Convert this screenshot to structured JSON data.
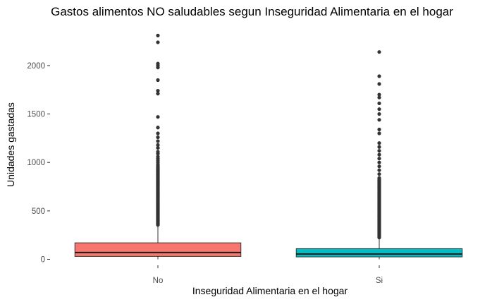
{
  "chart_data": {
    "type": "boxplot",
    "title": "Gastos alimentos NO saludables segun Inseguridad Alimentaria en el hogar",
    "xlabel": "Inseguridad Alimentaria en el hogar",
    "ylabel": "Unidades gastadas",
    "categories": [
      "No",
      "Si"
    ],
    "ylim": [
      -60,
      2380
    ],
    "yticks": [
      0,
      500,
      1000,
      1500,
      2000
    ],
    "grid": false,
    "legend": "none",
    "boxes": [
      {
        "category": "No",
        "color": "#F8766D",
        "min": 0,
        "q1": 30,
        "median": 70,
        "q3": 170,
        "whisker_high": 350,
        "outlier_range": [
          355,
          960
        ],
        "outliers": [
          965,
          980,
          1000,
          1020,
          1040,
          1060,
          1090,
          1110,
          1150,
          1180,
          1220,
          1260,
          1300,
          1360,
          1470,
          1710,
          1740,
          1850,
          1980,
          2000,
          2020,
          2240,
          2310
        ]
      },
      {
        "category": "Si",
        "color": "#00BFC4",
        "min": 0,
        "q1": 25,
        "median": 55,
        "q3": 110,
        "whisker_high": 220,
        "outlier_range": [
          225,
          830
        ],
        "outliers": [
          840,
          880,
          920,
          960,
          1000,
          1040,
          1080,
          1120,
          1160,
          1200,
          1300,
          1340,
          1440,
          1500,
          1550,
          1610,
          1670,
          1700,
          1810,
          1890,
          2140
        ]
      }
    ]
  }
}
